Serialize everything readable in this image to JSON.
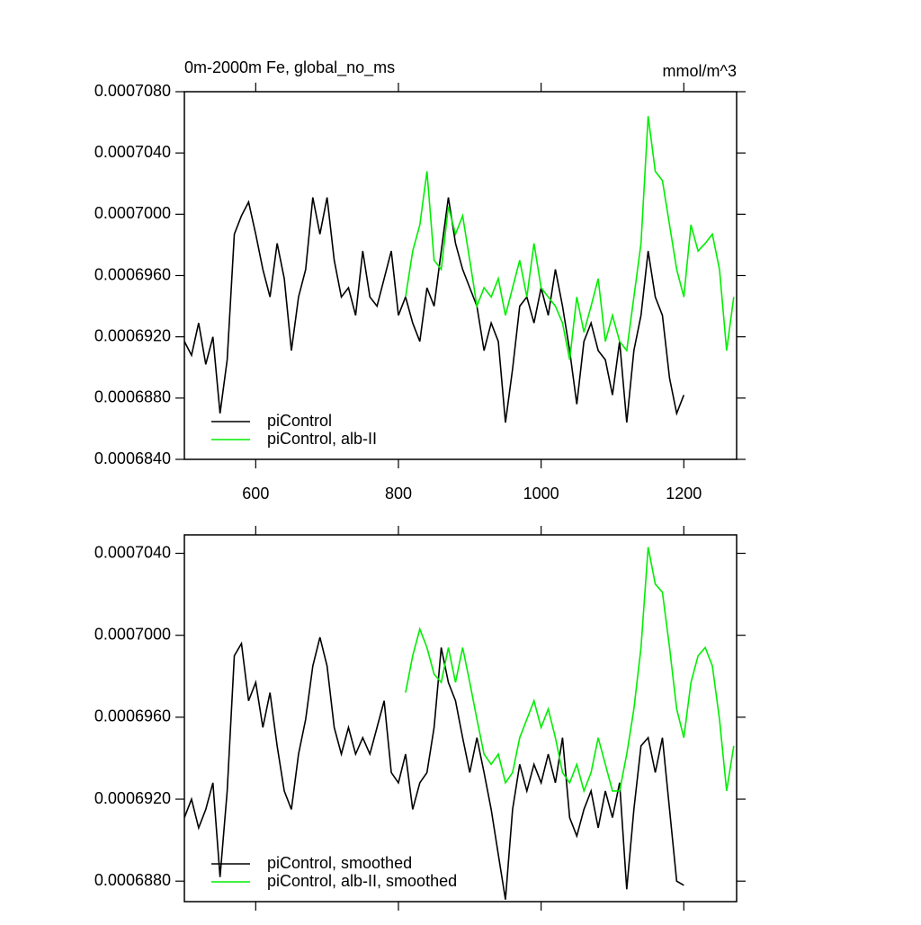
{
  "chart_data": [
    {
      "type": "line",
      "title": "0m-2000m Fe, global_no_ms",
      "units": "mmol/m^3",
      "xlim": [
        500,
        1274
      ],
      "xticks": [
        600,
        800,
        1000,
        1200
      ],
      "ylim": [
        0.000684,
        0.000708
      ],
      "yticks": [
        {
          "value": 0.000684,
          "label": "0.0006840"
        },
        {
          "value": 0.000688,
          "label": "0.0006880"
        },
        {
          "value": 0.000692,
          "label": "0.0006920"
        },
        {
          "value": 0.000696,
          "label": "0.0006960"
        },
        {
          "value": 0.0007,
          "label": "0.0007000"
        },
        {
          "value": 0.000704,
          "label": "0.0007040"
        },
        {
          "value": 0.000708,
          "label": "0.0007080"
        }
      ],
      "legend": "lower left",
      "x": [
        500,
        510,
        520,
        530,
        540,
        550,
        560,
        570,
        580,
        590,
        600,
        610,
        620,
        630,
        640,
        650,
        660,
        670,
        680,
        690,
        700,
        710,
        720,
        730,
        740,
        750,
        760,
        770,
        780,
        790,
        800,
        810,
        820,
        830,
        840,
        850,
        860,
        870,
        880,
        890,
        900,
        910,
        920,
        930,
        940,
        950,
        960,
        970,
        980,
        990,
        1000,
        1010,
        1020,
        1030,
        1040,
        1050,
        1060,
        1070,
        1080,
        1090,
        1100,
        1110,
        1120,
        1130,
        1140,
        1150,
        1160,
        1170,
        1180,
        1190,
        1200,
        1210,
        1220,
        1230,
        1240,
        1250,
        1260,
        1270
      ],
      "series": [
        {
          "name": "piControl",
          "color": "#000000",
          "values": [
            0.0006917,
            0.0006908,
            0.0006929,
            0.0006902,
            0.000692,
            0.000687,
            0.0006905,
            0.0006987,
            0.0006999,
            0.0007008,
            0.0006987,
            0.0006964,
            0.0006946,
            0.0006981,
            0.0006958,
            0.0006911,
            0.0006946,
            0.0006964,
            0.0007011,
            0.0006987,
            0.0007011,
            0.000697,
            0.0006946,
            0.0006952,
            0.0006934,
            0.0006976,
            0.0006946,
            0.000694,
            0.0006958,
            0.0006976,
            0.0006934,
            0.0006946,
            0.0006929,
            0.0006917,
            0.0006952,
            0.000694,
            0.0006976,
            0.0007011,
            0.0006981,
            0.0006964,
            0.0006952,
            0.000694,
            0.0006911,
            0.0006929,
            0.0006917,
            0.0006864,
            0.0006899,
            0.000694,
            0.0006946,
            0.0006929,
            0.0006952,
            0.0006934,
            0.0006964,
            0.000694,
            0.0006911,
            0.0006876,
            0.0006917,
            0.0006929,
            0.0006911,
            0.0006905,
            0.0006882,
            0.0006917,
            0.0006864,
            0.0006911,
            0.0006934,
            0.0006976,
            0.0006946,
            0.0006934,
            0.0006893,
            0.000687,
            0.0006882,
            null,
            null,
            null,
            null,
            null,
            null,
            null
          ]
        },
        {
          "name": "piControl, alb-II",
          "color": "#00ee00",
          "values": [
            null,
            null,
            null,
            null,
            null,
            null,
            null,
            null,
            null,
            null,
            null,
            null,
            null,
            null,
            null,
            null,
            null,
            null,
            null,
            null,
            null,
            null,
            null,
            null,
            null,
            null,
            null,
            null,
            null,
            null,
            null,
            0.0006946,
            0.0006976,
            0.0006993,
            0.0007028,
            0.000697,
            0.0006964,
            0.0007005,
            0.0006987,
            0.0006999,
            0.000697,
            0.000694,
            0.0006952,
            0.0006946,
            0.0006958,
            0.0006934,
            0.0006952,
            0.000697,
            0.0006946,
            0.0006981,
            0.0006952,
            0.0006946,
            0.000694,
            0.0006929,
            0.0006905,
            0.0006946,
            0.0006923,
            0.000694,
            0.0006958,
            0.0006917,
            0.0006934,
            0.0006917,
            0.0006911,
            0.0006946,
            0.0006981,
            0.0007064,
            0.0007028,
            0.0007022,
            0.0006993,
            0.0006964,
            0.0006946,
            0.0006993,
            0.0006976,
            0.0006981,
            0.0006987,
            0.0006964,
            0.0006911,
            0.0006946
          ]
        }
      ]
    },
    {
      "type": "line",
      "xlim": [
        500,
        1274
      ],
      "xticks": [
        600,
        800,
        1000,
        1200
      ],
      "ylim": [
        0.000687,
        0.0007049
      ],
      "yticks": [
        {
          "value": 0.000688,
          "label": "0.0006880"
        },
        {
          "value": 0.000692,
          "label": "0.0006920"
        },
        {
          "value": 0.000696,
          "label": "0.0006960"
        },
        {
          "value": 0.0007,
          "label": "0.0007000"
        },
        {
          "value": 0.000704,
          "label": "0.0007040"
        }
      ],
      "legend": "lower left",
      "x": [
        500,
        510,
        520,
        530,
        540,
        550,
        560,
        570,
        580,
        590,
        600,
        610,
        620,
        630,
        640,
        650,
        660,
        670,
        680,
        690,
        700,
        710,
        720,
        730,
        740,
        750,
        760,
        770,
        780,
        790,
        800,
        810,
        820,
        830,
        840,
        850,
        860,
        870,
        880,
        890,
        900,
        910,
        920,
        930,
        940,
        950,
        960,
        970,
        980,
        990,
        1000,
        1010,
        1020,
        1030,
        1040,
        1050,
        1060,
        1070,
        1080,
        1090,
        1100,
        1110,
        1120,
        1130,
        1140,
        1150,
        1160,
        1170,
        1180,
        1190,
        1200,
        1210,
        1220,
        1230,
        1240,
        1250,
        1260,
        1270
      ],
      "series": [
        {
          "name": "piControl, smoothed",
          "color": "#000000",
          "values": [
            0.0006911,
            0.000692,
            0.0006906,
            0.0006915,
            0.0006928,
            0.0006882,
            0.0006924,
            0.000699,
            0.0006996,
            0.0006968,
            0.0006977,
            0.0006955,
            0.0006972,
            0.0006946,
            0.0006924,
            0.0006915,
            0.0006942,
            0.0006959,
            0.0006985,
            0.0006999,
            0.0006985,
            0.0006955,
            0.0006942,
            0.0006955,
            0.0006942,
            0.000695,
            0.0006942,
            0.0006955,
            0.0006968,
            0.0006933,
            0.0006928,
            0.0006942,
            0.0006915,
            0.0006928,
            0.0006933,
            0.0006955,
            0.0006994,
            0.0006977,
            0.0006968,
            0.000695,
            0.0006933,
            0.000695,
            0.0006933,
            0.0006915,
            0.0006893,
            0.0006871,
            0.0006915,
            0.0006937,
            0.0006924,
            0.0006937,
            0.0006928,
            0.0006942,
            0.0006928,
            0.000695,
            0.0006911,
            0.0006902,
            0.0006915,
            0.0006924,
            0.0006906,
            0.0006924,
            0.0006911,
            0.0006928,
            0.0006876,
            0.0006915,
            0.0006946,
            0.000695,
            0.0006933,
            0.000695,
            0.0006915,
            0.000688,
            0.0006878,
            null,
            null,
            null,
            null,
            null,
            null,
            null
          ]
        },
        {
          "name": "piControl, alb-II, smoothed",
          "color": "#00ee00",
          "values": [
            null,
            null,
            null,
            null,
            null,
            null,
            null,
            null,
            null,
            null,
            null,
            null,
            null,
            null,
            null,
            null,
            null,
            null,
            null,
            null,
            null,
            null,
            null,
            null,
            null,
            null,
            null,
            null,
            null,
            null,
            null,
            0.0006972,
            0.000699,
            0.0007003,
            0.0006994,
            0.0006981,
            0.0006977,
            0.0006994,
            0.0006977,
            0.0006994,
            0.0006977,
            0.0006959,
            0.0006942,
            0.0006937,
            0.0006942,
            0.0006928,
            0.0006933,
            0.000695,
            0.0006959,
            0.0006968,
            0.0006955,
            0.0006964,
            0.000695,
            0.0006933,
            0.0006928,
            0.0006937,
            0.0006924,
            0.0006933,
            0.000695,
            0.0006937,
            0.0006924,
            0.0006924,
            0.0006942,
            0.0006964,
            0.0006994,
            0.0007043,
            0.0007025,
            0.0007021,
            0.0006994,
            0.0006964,
            0.000695,
            0.0006977,
            0.000699,
            0.0006994,
            0.0006985,
            0.0006959,
            0.0006924,
            0.0006946
          ]
        }
      ]
    }
  ]
}
